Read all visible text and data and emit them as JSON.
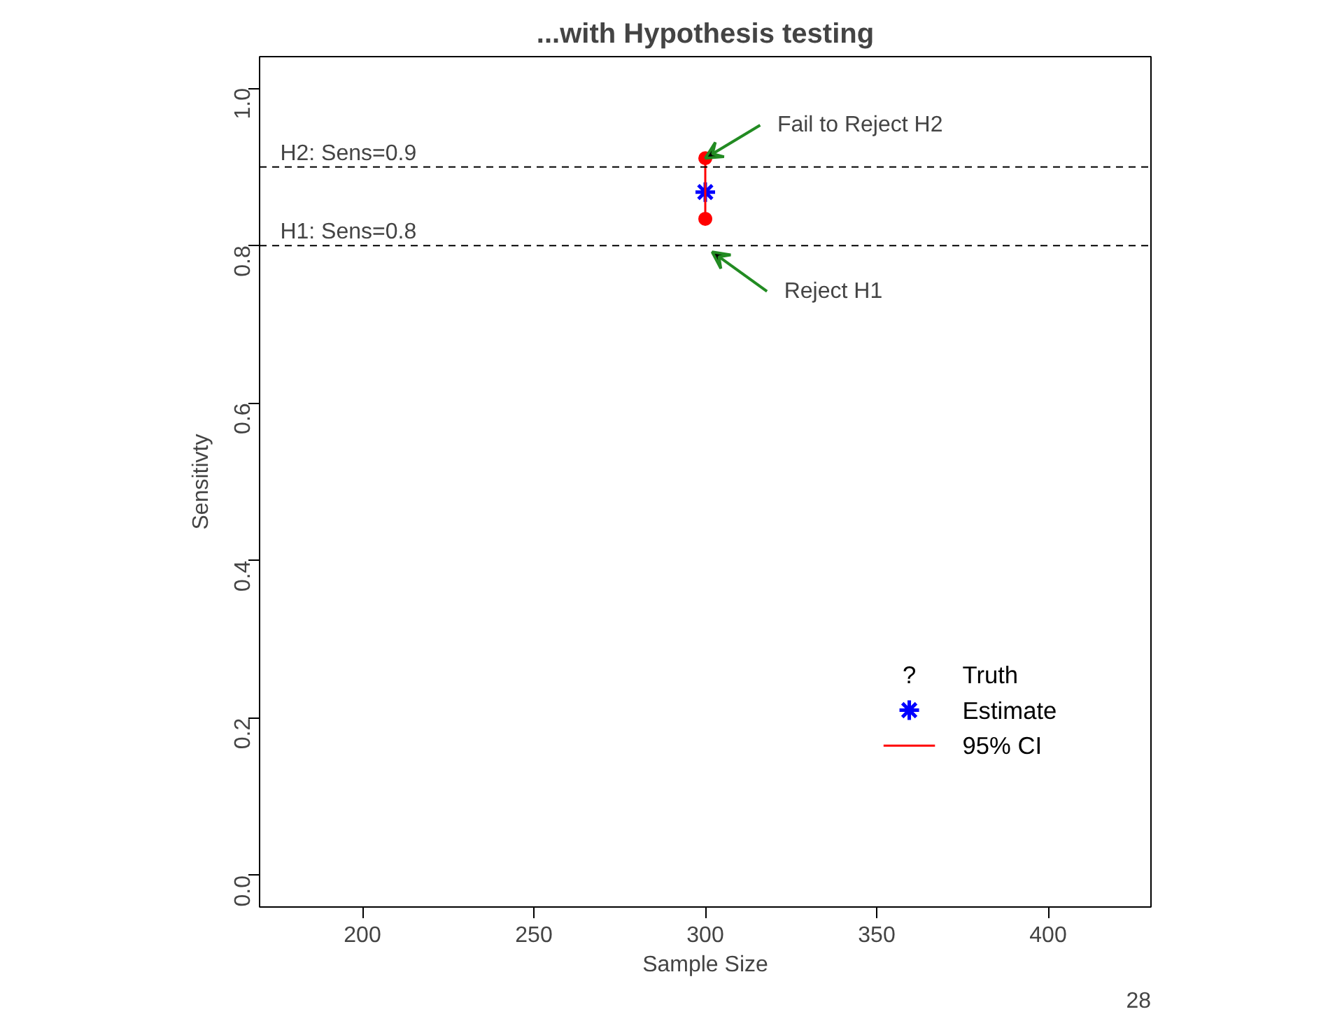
{
  "chart_data": {
    "type": "scatter",
    "title": "...with Hypothesis testing",
    "xlabel": "Sample Size",
    "ylabel": "Sensitivty",
    "xlim": [
      170,
      430
    ],
    "xticks": [
      200,
      250,
      300,
      350,
      400
    ],
    "ylim": [
      -0.04,
      1.04
    ],
    "yticks": [
      {
        "value": 0,
        "label": "0.0"
      },
      {
        "value": 0.2,
        "label": "0.2"
      },
      {
        "value": 0.4,
        "label": "0.4"
      },
      {
        "value": 0.6,
        "label": "0.6"
      },
      {
        "value": 0.8,
        "label": "0.8"
      },
      {
        "value": 1,
        "label": "1.0"
      }
    ],
    "grid": false,
    "legend": "bottom right",
    "x": [
      300
    ],
    "series": [
      {
        "name": "Truth",
        "marker": "none",
        "color": "#000000",
        "values": [
          null
        ]
      },
      {
        "name": "Estimate",
        "marker": "cross",
        "color": "#0000ff",
        "values": [
          0.868
        ]
      },
      {
        "name": "95% CI",
        "type": "line",
        "marker": "circle",
        "color": "#ff0000",
        "x": [
          300,
          300
        ],
        "values": [
          0.834,
          0.911
        ]
      }
    ],
    "ref_lines": [
      {
        "axis": "y",
        "value": 0.9,
        "label": "H2: Sens=0.9",
        "color": "#000000",
        "line_style": "dashed"
      },
      {
        "axis": "y",
        "value": 0.8,
        "label": "H1: Sens=0.8",
        "color": "#000000",
        "line_style": "dashed"
      }
    ],
    "annotations": [
      {
        "text": "Fail to Reject H2",
        "x": 300,
        "y": 0.911
      },
      {
        "text": "Reject H1",
        "x": 302,
        "y": 0.792
      },
      "?",
      "28"
    ]
  }
}
